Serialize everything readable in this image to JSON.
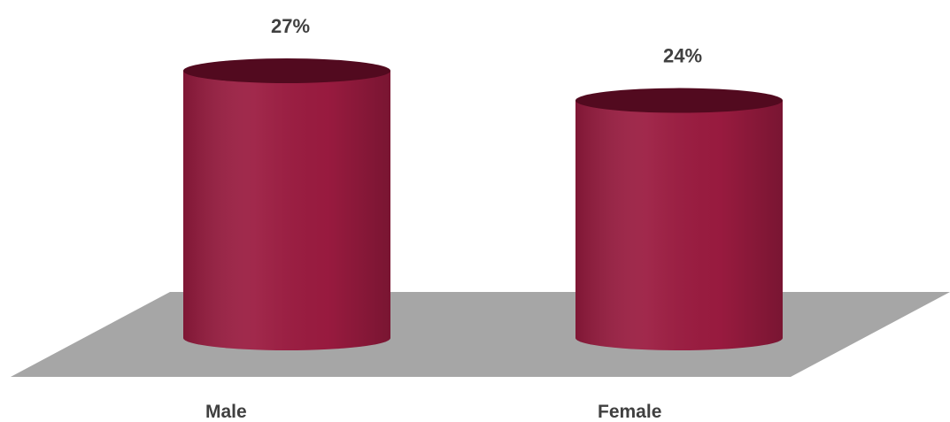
{
  "chart_data": {
    "type": "bar",
    "style": "3d-cylinder",
    "categories": [
      "Male",
      "Female"
    ],
    "values": [
      27,
      24
    ],
    "value_suffix": "%",
    "title": "",
    "xlabel": "",
    "ylabel": "",
    "ylim": [
      0,
      27
    ],
    "grid": false,
    "legend": "none"
  },
  "colors": {
    "bar_body": "#9b1b40",
    "bar_top": "#520a1f",
    "floor": "#a6a6a6",
    "label_text": "#404040"
  }
}
